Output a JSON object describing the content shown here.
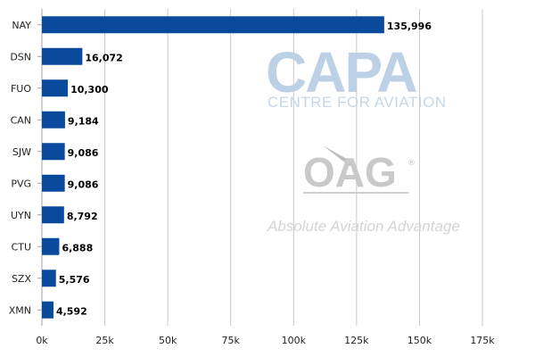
{
  "chart_data": {
    "type": "bar",
    "orientation": "horizontal",
    "title": "",
    "xlabel": "",
    "ylabel": "",
    "categories": [
      "NAY",
      "DSN",
      "FUO",
      "CAN",
      "SJW",
      "PVG",
      "UYN",
      "CTU",
      "SZX",
      "XMN"
    ],
    "values": [
      135996,
      16072,
      10300,
      9184,
      9086,
      9086,
      8792,
      6888,
      5576,
      4592
    ],
    "value_labels": [
      "135,996",
      "16,072",
      "10,300",
      "9,184",
      "9,086",
      "9,086",
      "8,792",
      "6,888",
      "5,576",
      "4,592"
    ],
    "xlim": [
      0,
      175000
    ],
    "x_ticks": [
      0,
      25000,
      50000,
      75000,
      100000,
      125000,
      150000,
      175000
    ],
    "x_tick_labels": [
      "0k",
      "25k",
      "50k",
      "75k",
      "100k",
      "125k",
      "150k",
      "175k"
    ],
    "grid": true,
    "legend": "none",
    "bar_color": "#0a4a9c"
  },
  "watermarks": {
    "capa": "CAPA",
    "capa_sub": "CENTRE FOR AVIATION",
    "oag": "OAG",
    "oag_registered": "®",
    "oag_tagline": "Absolute Aviation Advantage"
  }
}
